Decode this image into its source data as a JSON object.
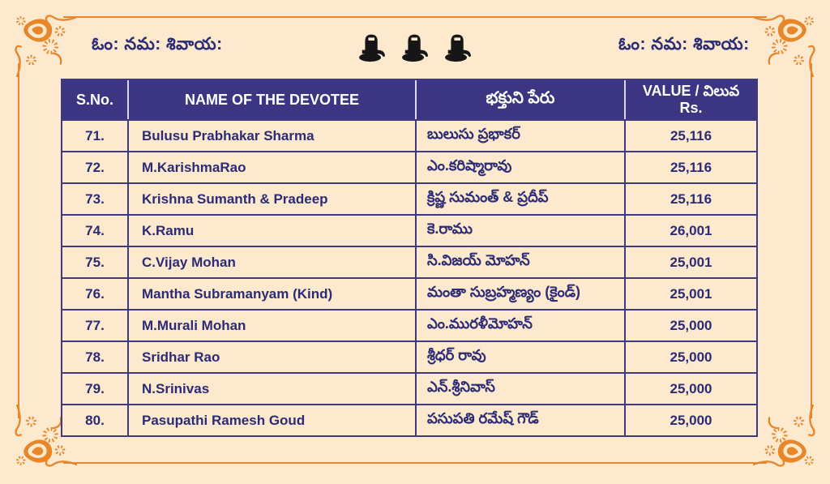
{
  "page": {
    "background_color": "#FCE9CE",
    "frame_color": "#E8872A",
    "header_bg_color": "#3B3582",
    "grid_color": "#3D3A80",
    "text_color": "#2B2B76",
    "lingam_color": "#161616"
  },
  "header": {
    "left_mantra": "ఓం: నమ: శివాయ:",
    "right_mantra": "ఓం: నమ: శివాయ:",
    "center_icons": [
      "lingam-icon",
      "lingam-icon",
      "lingam-icon"
    ]
  },
  "table": {
    "col_sno": "S.No.",
    "col_name": "NAME OF THE DEVOTEE",
    "col_name_telugu": "భక్తుని పేరు",
    "col_value_line1": "VALUE / విలువ",
    "col_value_line2": "Rs.",
    "rows": [
      {
        "sno": "71.",
        "name": "Bulusu Prabhakar Sharma",
        "name_telugu": "బులుసు ప్రభాకర్",
        "value": "25,116"
      },
      {
        "sno": "72.",
        "name": "M.KarishmaRao",
        "name_telugu": "ఎం.కరిష్మారావు",
        "value": "25,116"
      },
      {
        "sno": "73.",
        "name": "Krishna Sumanth & Pradeep",
        "name_telugu": "క్రిష్ణ సుమంత్ & ప్రదీప్",
        "value": "25,116"
      },
      {
        "sno": "74.",
        "name": "K.Ramu",
        "name_telugu": "కె.రాము",
        "value": "26,001"
      },
      {
        "sno": "75.",
        "name": "C.Vijay Mohan",
        "name_telugu": "సి.విజయ్ మోహన్",
        "value": "25,001"
      },
      {
        "sno": "76.",
        "name": "Mantha Subramanyam (Kind)",
        "name_telugu": "మంతా సుబ్రహ్మణ్యం (కైండ్)",
        "value": "25,001"
      },
      {
        "sno": "77.",
        "name": "M.Murali Mohan",
        "name_telugu": "ఎం.మురళీమోహన్",
        "value": "25,000"
      },
      {
        "sno": "78.",
        "name": "Sridhar Rao",
        "name_telugu": "శ్రీధర్ రావు",
        "value": "25,000"
      },
      {
        "sno": "79.",
        "name": "N.Srinivas",
        "name_telugu": "ఎన్.శ్రీనివాస్",
        "value": "25,000"
      },
      {
        "sno": "80.",
        "name": "Pasupathi Ramesh Goud",
        "name_telugu": "పసుపతి రమేష్ గౌడ్",
        "value": "25,000"
      }
    ]
  }
}
